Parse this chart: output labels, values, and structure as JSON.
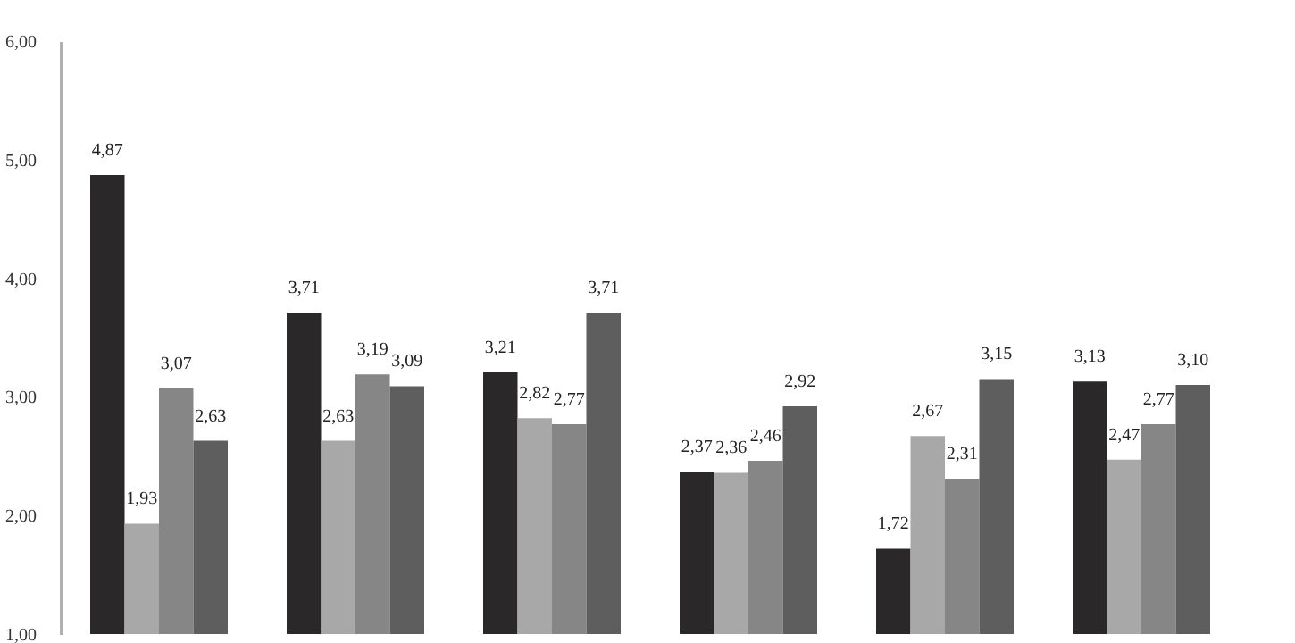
{
  "chart_data": {
    "type": "bar",
    "categories": [
      null,
      null,
      null,
      null,
      null,
      null
    ],
    "series": [
      {
        "color": "#2b2829",
        "values": [
          4.87,
          3.71,
          3.21,
          2.37,
          1.72,
          3.13
        ],
        "value_labels": [
          "4,87",
          "3,71",
          "3,21",
          "2,37",
          "1,72",
          "3,13"
        ]
      },
      {
        "color": "#a8a8a8",
        "values": [
          1.93,
          2.63,
          2.82,
          2.36,
          2.67,
          2.47
        ],
        "value_labels": [
          "1,93",
          "2,63",
          "2,82",
          "2,36",
          "2,67",
          "2,47"
        ]
      },
      {
        "color": "#868686",
        "values": [
          3.07,
          3.19,
          2.77,
          2.46,
          2.31,
          2.77
        ],
        "value_labels": [
          "3,07",
          "3,19",
          "2,77",
          "2,46",
          "2,31",
          "2,77"
        ]
      },
      {
        "color": "#5e5e5e",
        "values": [
          2.63,
          3.09,
          3.71,
          2.92,
          3.15,
          3.1
        ],
        "value_labels": [
          "2,63",
          "3,09",
          "3,71",
          "2,92",
          "3,15",
          "3,10"
        ]
      }
    ],
    "ylim": [
      1,
      6
    ],
    "yticks": [
      {
        "value": 1,
        "label": "1,00"
      },
      {
        "value": 2,
        "label": "2,00"
      },
      {
        "value": 3,
        "label": "3,00"
      },
      {
        "value": 4,
        "label": "4,00"
      },
      {
        "value": 5,
        "label": "5,00"
      },
      {
        "value": 6,
        "label": "6,00"
      }
    ],
    "grid": false,
    "tick_labels": "y"
  }
}
